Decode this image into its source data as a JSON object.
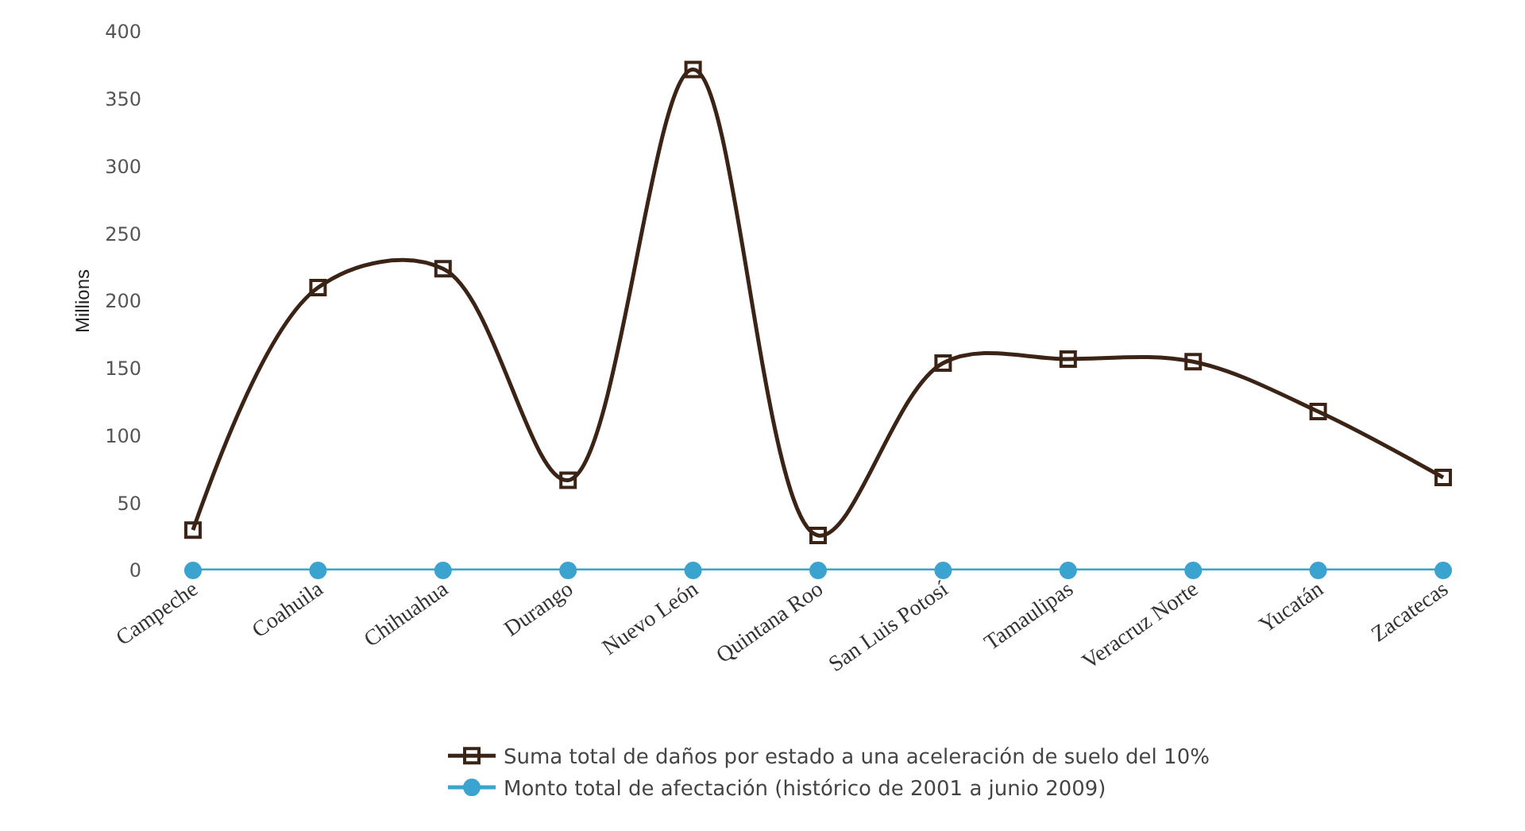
{
  "chart_data": {
    "type": "line",
    "ylabel": "Millions",
    "categories": [
      "Campeche",
      "Coahuila",
      "Chihuahua",
      "Durango",
      "Nuevo León",
      "Quintana Roo",
      "San Luis Potosí",
      "Tamaulipas",
      "Veracruz Norte",
      "Yucatán",
      "Zacatecas"
    ],
    "series": [
      {
        "name": "Suma total de daños por estado a una aceleración de suelo del 10%",
        "color": "#3b2416",
        "marker": "square",
        "values": [
          30,
          210,
          224,
          67,
          372,
          26,
          154,
          157,
          155,
          118,
          69
        ]
      },
      {
        "name": "Monto total de afectación (histórico de 2001 a junio 2009)",
        "color": "#3aa3cf",
        "marker": "circle",
        "values": [
          0,
          0,
          0,
          0,
          0,
          0,
          0,
          0,
          0,
          0,
          0
        ]
      }
    ],
    "ylim": [
      0,
      400
    ],
    "yticks": [
      0,
      50,
      100,
      150,
      200,
      250,
      300,
      350,
      400
    ],
    "grid": false,
    "legend": "bottom"
  }
}
